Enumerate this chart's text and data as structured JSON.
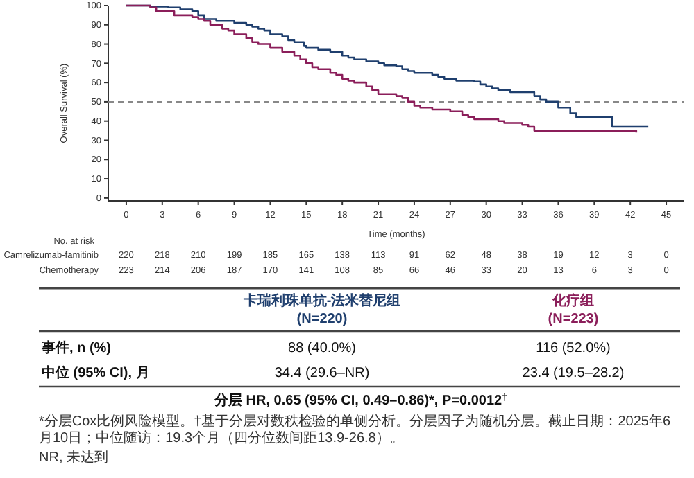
{
  "chart_data": {
    "type": "step",
    "ylabel": "Overall Survival (%)",
    "xlabel": "Time (months)",
    "xlim": [
      -1.5,
      46.5
    ],
    "xticks": [
      0,
      3,
      6,
      9,
      12,
      15,
      18,
      21,
      24,
      27,
      30,
      33,
      36,
      39,
      42,
      45
    ],
    "ylim": [
      -1.5,
      100
    ],
    "yticks": [
      0,
      10,
      20,
      30,
      40,
      50,
      60,
      70,
      80,
      90,
      100
    ],
    "grid": false,
    "line_style": "solid",
    "ref_lines": [
      {
        "axis": "y",
        "value": 50,
        "color": "#888888",
        "line_style": "dashed"
      }
    ],
    "series": [
      {
        "color": "#1f3f6e",
        "x": [
          0,
          2,
          3.5,
          4.5,
          5.5,
          6,
          6.5,
          7.5,
          9,
          10,
          10.5,
          11,
          11.5,
          12,
          13,
          13.5,
          14,
          14.8,
          15,
          16,
          17,
          18,
          18.5,
          19,
          20,
          21,
          21.5,
          22.5,
          23,
          23.5,
          24,
          25.5,
          26,
          26.5,
          27.5,
          29,
          29.5,
          30,
          30.5,
          31,
          32,
          33,
          34,
          34.5,
          35,
          36,
          37,
          37.5,
          40.5,
          43.5
        ],
        "values": [
          100,
          99.5,
          99,
          98,
          97,
          95,
          93,
          92,
          91,
          90,
          89,
          88,
          87,
          85,
          84,
          82,
          81,
          79,
          78,
          77,
          76,
          74,
          73,
          72,
          71,
          70,
          69,
          68.5,
          67,
          66,
          65,
          64,
          63,
          62,
          61,
          60.5,
          59,
          58,
          57,
          56,
          55,
          55,
          53,
          51,
          50,
          47,
          44,
          42,
          37,
          37
        ]
      },
      {
        "color": "#8b1e5a",
        "x": [
          0,
          2,
          2.5,
          4,
          5.5,
          6,
          6.5,
          7,
          8,
          8.5,
          9,
          10,
          10.5,
          11,
          12,
          13,
          14,
          14.5,
          15,
          15.5,
          16,
          17,
          17.5,
          18,
          18.5,
          19,
          20,
          20.5,
          21,
          22,
          22.5,
          23,
          23.5,
          24,
          24.5,
          25.5,
          27,
          28,
          28.5,
          29,
          31,
          31.5,
          33,
          33.5,
          34,
          42.5
        ],
        "values": [
          100,
          99,
          97,
          95,
          94,
          93,
          92,
          90,
          88,
          87,
          85,
          83,
          81,
          80,
          78,
          76,
          74,
          72,
          70,
          68,
          67,
          65,
          64,
          62,
          61,
          60,
          58,
          56,
          54,
          54,
          53,
          52,
          50,
          48,
          47,
          46,
          45,
          43,
          42,
          41,
          40,
          39,
          38,
          37,
          35,
          34
        ]
      }
    ],
    "annotations": [
      "No. at risk",
      "Camrelizumab-famitinib",
      "220 218 210 199 185 165 138 113 91 62 48 38 19 12 3 0",
      "Chemotherapy",
      "223 214 206 187 170 141 108 85 66 46 33 20 13 6 3 0",
      "卡瑞利珠单抗-法米替尼组",
      "(N=220)",
      "化疗组",
      "(N=223)",
      "事件, n (%)",
      "88 (40.0%)",
      "116 (52.0%)",
      "中位 (95% CI), 月",
      "34.4 (29.6–NR)",
      "23.4 (19.5–28.2)",
      "分层 HR, 0.65 (95% CI, 0.49–0.86)*, P=0.0012$^{†}$",
      "*分层Cox比例风险模型。†基于分层对数秩检验的单侧分析。分层因子为随机分层。截止日期：2025年6月10日；中位随访：19.3个月（四分位数间距13.9-26.8）。",
      "NR, 未达到"
    ]
  }
}
